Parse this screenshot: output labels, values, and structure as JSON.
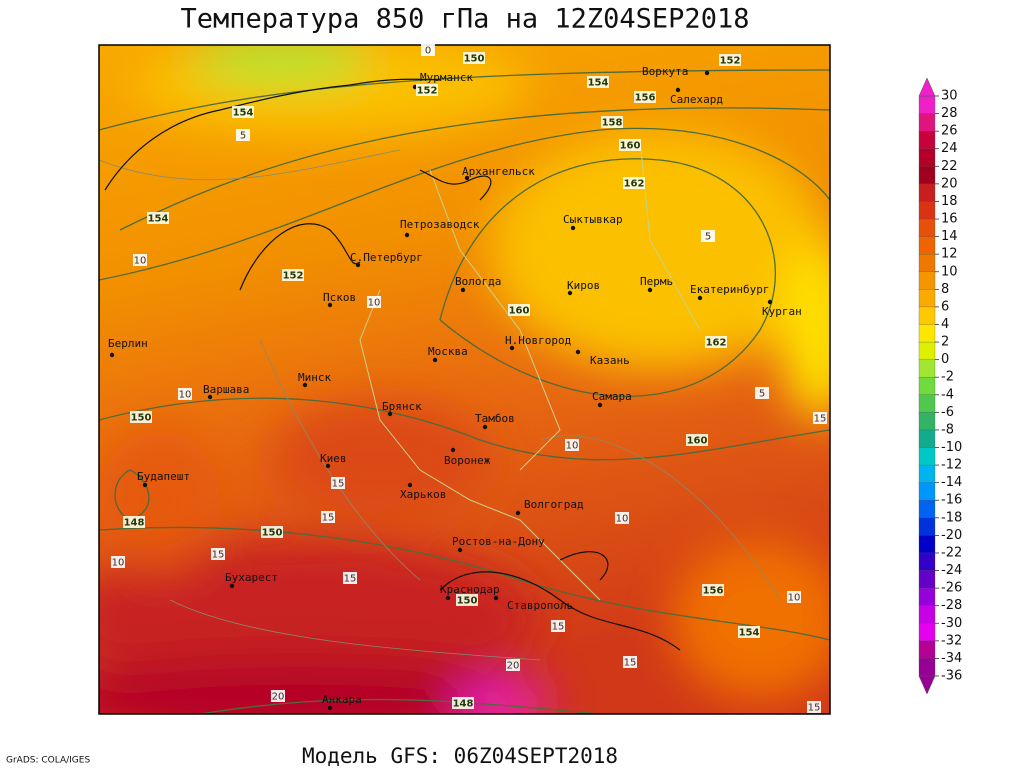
{
  "title": "Температура 850 гПа на 12Z04SEP2018",
  "footer": "Модель GFS: 06Z04SEPT2018",
  "credit": "GrADS: COLA/IGES",
  "cities": [
    "Мурманск",
    "Воркута",
    "Салехард",
    "Архангельск",
    "Петрозаводск",
    "Сыктывкар",
    "С.Петербург",
    "Вологда",
    "Киров",
    "Пермь",
    "Екатеринбург",
    "Курган",
    "Псков",
    "Берлин",
    "Москва",
    "Н.Новгород",
    "Казань",
    "Минск",
    "Варшава",
    "Самара",
    "Брянск",
    "Тамбов",
    "Воронеж",
    "Киев",
    "Будапешт",
    "Харьков",
    "Волгоград",
    "Ростов-на-Дону",
    "Бухарест",
    "Краснодар",
    "Ставрополь",
    "Анкара"
  ],
  "contour_labels": [
    150,
    152,
    154,
    156,
    152,
    158,
    160,
    162,
    154,
    154,
    152,
    160,
    162,
    160,
    150,
    148,
    150,
    150,
    156,
    154,
    148,
    10,
    10,
    10,
    15,
    15,
    15,
    10,
    15,
    10,
    10,
    15,
    15,
    20,
    20,
    10,
    5,
    5,
    15,
    5,
    0,
    15
  ],
  "colorbar": {
    "ticks": [
      30,
      28,
      26,
      24,
      22,
      20,
      18,
      16,
      14,
      12,
      10,
      8,
      6,
      4,
      2,
      0,
      -2,
      -4,
      -6,
      -8,
      -10,
      -12,
      -14,
      -16,
      -18,
      -20,
      -22,
      -24,
      -26,
      -28,
      -30,
      -32,
      -34,
      -36
    ],
    "colors": [
      "#f020c8",
      "#e0147f",
      "#c8003c",
      "#b40028",
      "#a0001e",
      "#c81e1e",
      "#dc3214",
      "#e6500a",
      "#f06400",
      "#f07800",
      "#f59600",
      "#faaa00",
      "#ffc800",
      "#ffe600",
      "#dcf000",
      "#a0e632",
      "#6edc3c",
      "#50c850",
      "#32b464",
      "#14aa8c",
      "#00c8c8",
      "#00b4f0",
      "#0096ff",
      "#0064f0",
      "#0032dc",
      "#0000c8",
      "#3200c8",
      "#6400c8",
      "#9600dc",
      "#c800e6",
      "#e600f0",
      "#b40096",
      "#960096"
    ]
  }
}
